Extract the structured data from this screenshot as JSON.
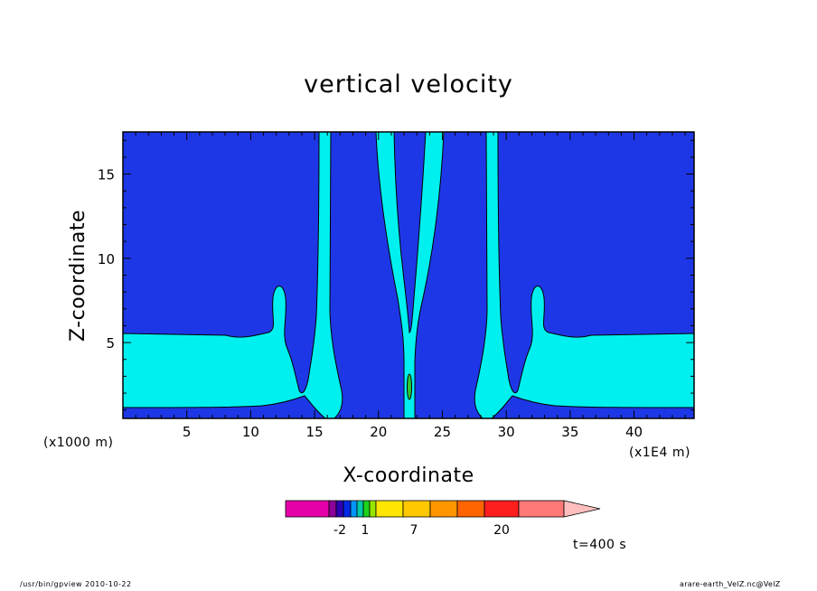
{
  "chart_data": {
    "type": "heatmap",
    "title": "vertical velocity",
    "xlabel": "X-coordinate",
    "ylabel": "Z-coordinate",
    "x_unit_label": "(x1E4 m)",
    "y_unit_label": "(x1000 m)",
    "x_ticks": [
      5,
      10,
      15,
      20,
      25,
      30,
      35,
      40
    ],
    "y_ticks": [
      5,
      10,
      15
    ],
    "xlim": [
      0,
      44.7
    ],
    "ylim": [
      0.5,
      17.5
    ],
    "colorbar": {
      "colors": [
        "#e600aa",
        "#8c0096",
        "#2d00b4",
        "#0028e6",
        "#0096ff",
        "#00c8aa",
        "#1ed21e",
        "#96e600",
        "#ffe600",
        "#ffc800",
        "#ff9600",
        "#ff6400",
        "#ff1e1e",
        "#ff7878",
        "#ffbebe"
      ],
      "tick_labels": [
        "-2",
        "1",
        "7",
        "20"
      ]
    },
    "field_colors": {
      "background": "#1e37e6",
      "positive": "#00f0f0",
      "positive_core": "#32c832"
    },
    "time_label": "t=400 s"
  },
  "footer": {
    "left": "/usr/bin/gpview   2010-10-22",
    "right": "arare-earth_VelZ.nc@VelZ"
  }
}
